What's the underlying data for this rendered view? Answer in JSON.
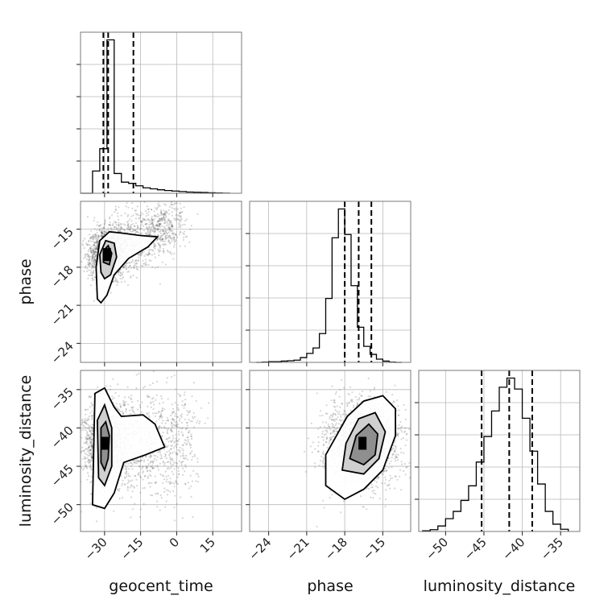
{
  "chart_data": {
    "type": "corner",
    "grid": true,
    "parameters": [
      "geocent_time",
      "phase",
      "luminosity_distance"
    ],
    "axis_ranges": {
      "geocent_time": [
        -40,
        27
      ],
      "phase": [
        -25.5,
        -12.8
      ],
      "luminosity_distance": [
        -53.5,
        -32.5
      ]
    },
    "ticks": {
      "geocent_time": [
        -30,
        -15,
        0,
        15
      ],
      "phase": [
        -24,
        -21,
        -18,
        -15
      ],
      "luminosity_distance": [
        -50,
        -45,
        -40,
        -35
      ]
    },
    "tick_labels": {
      "geocent_time": [
        "−30",
        "−15",
        "0",
        "15"
      ],
      "phase": [
        "−24",
        "−21",
        "−18",
        "−15"
      ],
      "luminosity_distance": [
        "−50",
        "−45",
        "−40",
        "−35"
      ]
    },
    "histograms": [
      {
        "parameter": "geocent_time",
        "bin_edges": [
          -40,
          -35,
          -32,
          -29,
          -26,
          -23,
          -20,
          -17,
          -14,
          -11,
          -8,
          -5,
          -2,
          1,
          4,
          7,
          10,
          13,
          16,
          19,
          22
        ],
        "counts": [
          0,
          0.9,
          1.8,
          6.2,
          0.8,
          0.45,
          0.4,
          0.3,
          0.22,
          0.18,
          0.14,
          0.11,
          0.09,
          0.07,
          0.05,
          0.04,
          0.03,
          0.02,
          0.01,
          0.005
        ],
        "quantiles": [
          -30.5,
          -28.5,
          -18
        ]
      },
      {
        "parameter": "phase",
        "bin_edges": [
          -25,
          -24.5,
          -24,
          -23.5,
          -23,
          -22.5,
          -22,
          -21.5,
          -21,
          -20.5,
          -20,
          -19.5,
          -19,
          -18.5,
          -18,
          -17.5,
          -17,
          -16.5,
          -16,
          -15.5,
          -15,
          -14.5,
          -14,
          -13.5
        ],
        "counts": [
          0,
          0.01,
          0.02,
          0.02,
          0.04,
          0.05,
          0.07,
          0.15,
          0.28,
          0.45,
          0.9,
          2.0,
          3.9,
          4.8,
          4.0,
          2.4,
          1.1,
          0.5,
          0.25,
          0.1,
          0.04,
          0.01,
          0
        ],
        "quantiles": [
          -18.0,
          -16.9,
          -15.9
        ]
      },
      {
        "parameter": "luminosity_distance",
        "bin_edges": [
          -53,
          -52,
          -51,
          -50,
          -49,
          -48,
          -47,
          -46,
          -45,
          -44,
          -43,
          -42,
          -41,
          -40,
          -39,
          -38,
          -37,
          -36,
          -35,
          -34
        ],
        "counts": [
          0.02,
          0.05,
          0.15,
          0.35,
          0.55,
          0.85,
          1.25,
          1.9,
          2.6,
          3.3,
          3.95,
          4.2,
          3.9,
          3.1,
          2.2,
          1.3,
          0.55,
          0.2,
          0.06
        ],
        "quantiles": [
          -45.3,
          -41.7,
          -38.7
        ]
      }
    ],
    "scatter_2d": [
      {
        "x": "geocent_time",
        "y": "phase",
        "peak": [
          -29,
          -17
        ],
        "n_points": 2600,
        "contour_levels": [
          [
            [
              -33,
              -20.5
            ],
            [
              -33.5,
              -18
            ],
            [
              -32,
              -15.9
            ],
            [
              -28,
              -15.2
            ],
            [
              -23,
              -15.3
            ],
            [
              -15,
              -15.5
            ],
            [
              -8,
              -15.6
            ],
            [
              -12,
              -16.4
            ],
            [
              -20,
              -17.3
            ],
            [
              -26,
              -18.6
            ],
            [
              -29,
              -20.2
            ],
            [
              -31.5,
              -20.8
            ]
          ],
          [
            [
              -31.5,
              -18.4
            ],
            [
              -32,
              -17
            ],
            [
              -29.5,
              -15.9
            ],
            [
              -26,
              -16.1
            ],
            [
              -25,
              -17.2
            ],
            [
              -27.5,
              -18.6
            ],
            [
              -30,
              -18.9
            ]
          ],
          [
            [
              -30.5,
              -17.6
            ],
            [
              -30.5,
              -16.7
            ],
            [
              -28.5,
              -16.3
            ],
            [
              -27,
              -16.9
            ],
            [
              -28,
              -17.8
            ]
          ]
        ]
      },
      {
        "x": "geocent_time",
        "y": "luminosity_distance",
        "peak": [
          -30,
          -42
        ],
        "n_points": 2600,
        "contour_levels": [
          [
            [
              -35,
              -50
            ],
            [
              -34,
              -35.5
            ],
            [
              -30,
              -34.8
            ],
            [
              -26,
              -37.3
            ],
            [
              -23,
              -38.5
            ],
            [
              -14,
              -38.3
            ],
            [
              -9,
              -39.5
            ],
            [
              -5,
              -42.5
            ],
            [
              -13,
              -43.5
            ],
            [
              -22,
              -44.5
            ],
            [
              -26,
              -48.5
            ],
            [
              -30,
              -50.5
            ]
          ],
          [
            [
              -32.5,
              -46.5
            ],
            [
              -33,
              -39
            ],
            [
              -30,
              -37
            ],
            [
              -27,
              -40
            ],
            [
              -27,
              -45
            ],
            [
              -30,
              -47.5
            ]
          ],
          [
            [
              -31.5,
              -44.5
            ],
            [
              -31.5,
              -40
            ],
            [
              -29.5,
              -39.2
            ],
            [
              -28,
              -41
            ],
            [
              -28.5,
              -44
            ],
            [
              -30,
              -45.5
            ]
          ]
        ]
      },
      {
        "x": "phase",
        "y": "luminosity_distance",
        "peak": [
          -16.6,
          -42
        ],
        "n_points": 2600,
        "contour_levels": [
          [
            [
              -19.5,
              -47.5
            ],
            [
              -19.5,
              -43.5
            ],
            [
              -17.8,
              -38.5
            ],
            [
              -16.5,
              -36.5
            ],
            [
              -15,
              -35.8
            ],
            [
              -14,
              -37.5
            ],
            [
              -14,
              -41
            ],
            [
              -15,
              -45.5
            ],
            [
              -16.5,
              -48
            ],
            [
              -18,
              -49.3
            ]
          ],
          [
            [
              -18.2,
              -45.5
            ],
            [
              -17.9,
              -42
            ],
            [
              -16.9,
              -38.8
            ],
            [
              -15.6,
              -38
            ],
            [
              -14.8,
              -40.5
            ],
            [
              -15.3,
              -44
            ],
            [
              -16.5,
              -46
            ]
          ],
          [
            [
              -17.6,
              -44
            ],
            [
              -17.1,
              -41
            ],
            [
              -16.1,
              -39.5
            ],
            [
              -15.4,
              -40.8
            ],
            [
              -15.6,
              -43.5
            ],
            [
              -16.5,
              -44.8
            ]
          ]
        ]
      }
    ]
  }
}
